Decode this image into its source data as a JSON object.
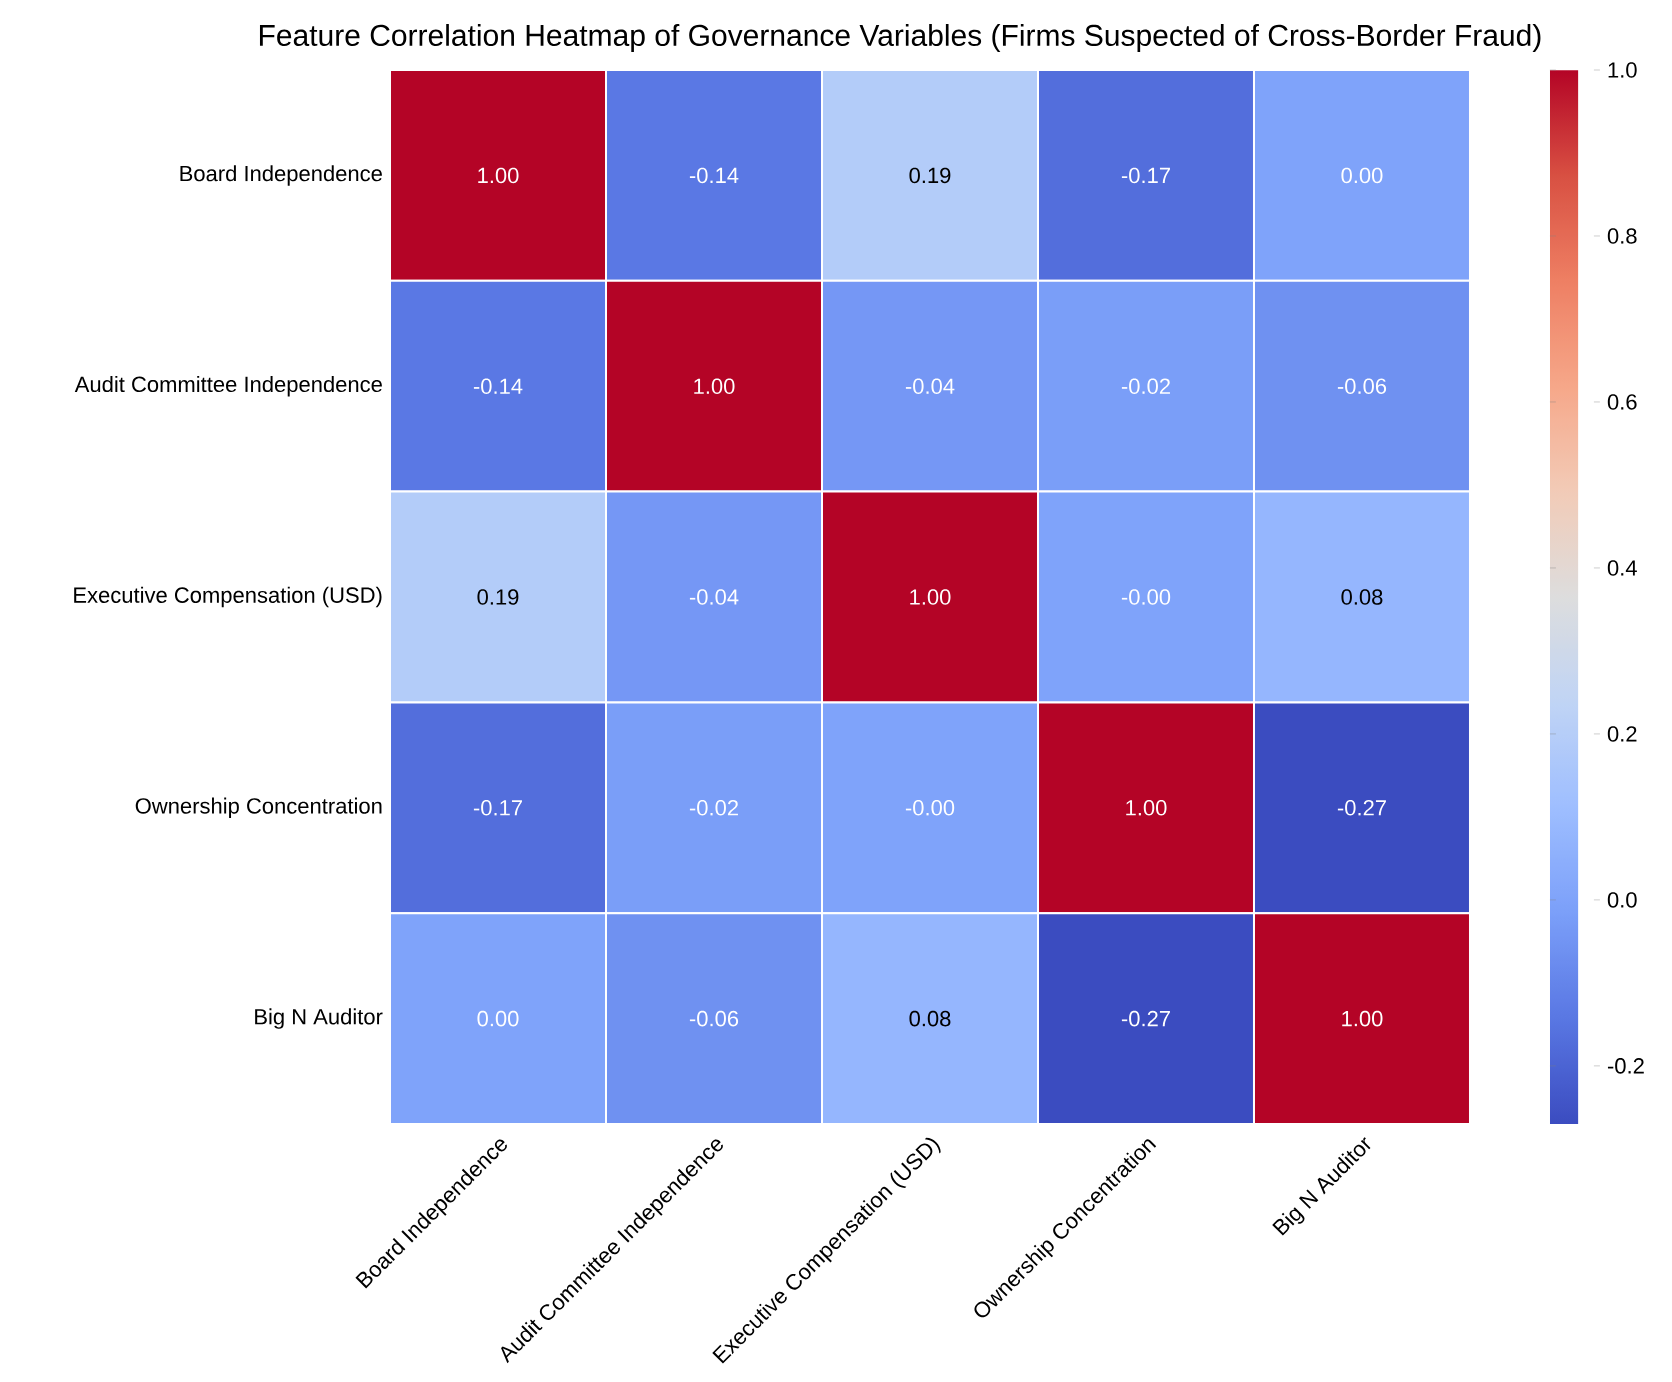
{
  "chart_data": {
    "type": "heatmap",
    "title": "Feature Correlation Heatmap of Governance Variables (Firms Suspected of Cross-Border Fraud)",
    "categories": [
      "Board Independence",
      "Audit Committee Independence",
      "Executive Compensation (USD)",
      "Ownership Concentration",
      "Big N Auditor"
    ],
    "y_categories": [
      "Board Independence",
      "Audit Committee Independence",
      "Executive Compensation (USD)",
      "Ownership Concentration",
      "Big N Auditor"
    ],
    "cells": [
      [
        1.0,
        -0.14,
        0.19,
        -0.17,
        0.0
      ],
      [
        -0.14,
        1.0,
        -0.04,
        -0.02,
        -0.06
      ],
      [
        0.19,
        -0.04,
        1.0,
        0.0,
        0.08
      ],
      [
        -0.17,
        -0.02,
        0.0,
        1.0,
        -0.27
      ],
      [
        0.0,
        -0.06,
        0.08,
        -0.27,
        1.0
      ]
    ],
    "cell_labels": [
      [
        "1.00",
        "-0.14",
        "0.19",
        "-0.17",
        "0.00"
      ],
      [
        "-0.14",
        "1.00",
        "-0.04",
        "-0.02",
        "-0.06"
      ],
      [
        "0.19",
        "-0.04",
        "1.00",
        "-0.00",
        "0.08"
      ],
      [
        "-0.17",
        "-0.02",
        "-0.00",
        "1.00",
        "-0.27"
      ],
      [
        "0.00",
        "-0.06",
        "0.08",
        "-0.27",
        "1.00"
      ]
    ],
    "clim": [
      -0.27,
      1.0
    ],
    "cticks": [
      -0.2,
      {
        "value": 0,
        "label": "0.0"
      },
      0.2,
      0.4,
      0.6,
      0.8,
      {
        "value": 1,
        "label": "1.0"
      }
    ]
  }
}
